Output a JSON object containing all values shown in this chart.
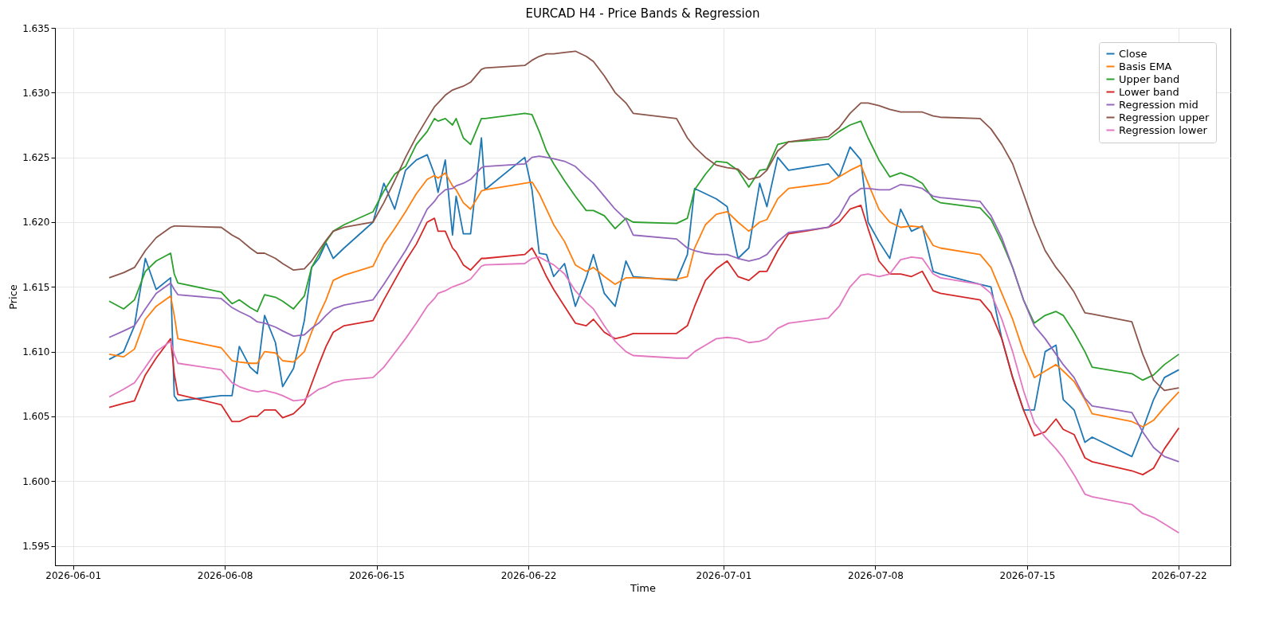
{
  "chart_data": {
    "type": "line",
    "title": "EURCAD H4 - Price Bands & Regression",
    "xlabel": "Time",
    "ylabel": "Price",
    "xlim": [
      "2026-05-31T04:00",
      "2026-07-24T09:00"
    ],
    "ylim": [
      1.5935,
      1.635
    ],
    "xticks": [
      "2026-06-01",
      "2026-06-08",
      "2026-06-15",
      "2026-06-22",
      "2026-07-01",
      "2026-07-08",
      "2026-07-15",
      "2026-07-22"
    ],
    "yticks": [
      {
        "value": 1.595,
        "label": "1.595"
      },
      {
        "value": 1.6,
        "label": "1.600"
      },
      {
        "value": 1.605,
        "label": "1.605"
      },
      {
        "value": 1.61,
        "label": "1.610"
      },
      {
        "value": 1.615,
        "label": "1.615"
      },
      {
        "value": 1.62,
        "label": "1.620"
      },
      {
        "value": 1.625,
        "label": "1.625"
      },
      {
        "value": 1.63,
        "label": "1.630"
      },
      {
        "value": 1.635,
        "label": "1.635"
      }
    ],
    "grid": true,
    "legend": "top right",
    "x": [
      "2026-06-02T16:00",
      "2026-06-03T08:00",
      "2026-06-03T20:00",
      "2026-06-04T08:00",
      "2026-06-04T20:00",
      "2026-06-05T12:00",
      "2026-06-05T16:00",
      "2026-06-05T20:00",
      "2026-06-07T20:00",
      "2026-06-08T08:00",
      "2026-06-08T16:00",
      "2026-06-09T04:00",
      "2026-06-09T12:00",
      "2026-06-09T20:00",
      "2026-06-10T08:00",
      "2026-06-10T16:00",
      "2026-06-11T04:00",
      "2026-06-11T16:00",
      "2026-06-12T00:00",
      "2026-06-12T08:00",
      "2026-06-12T16:00",
      "2026-06-13T00:00",
      "2026-06-13T12:00",
      "2026-06-14T20:00",
      "2026-06-15T08:00",
      "2026-06-15T20:00",
      "2026-06-16T08:00",
      "2026-06-16T20:00",
      "2026-06-17T08:00",
      "2026-06-17T16:00",
      "2026-06-17T20:00",
      "2026-06-18T04:00",
      "2026-06-18T12:00",
      "2026-06-18T16:00",
      "2026-06-19T00:00",
      "2026-06-19T08:00",
      "2026-06-19T20:00",
      "2026-06-20T00:00",
      "2026-06-21T20:00",
      "2026-06-22T04:00",
      "2026-06-22T12:00",
      "2026-06-22T20:00",
      "2026-06-23T04:00",
      "2026-06-23T16:00",
      "2026-06-24T04:00",
      "2026-06-24T16:00",
      "2026-06-25T00:00",
      "2026-06-25T12:00",
      "2026-06-26T00:00",
      "2026-06-26T12:00",
      "2026-06-26T20:00",
      "2026-06-28T20:00",
      "2026-06-29T08:00",
      "2026-06-29T16:00",
      "2026-06-30T04:00",
      "2026-06-30T16:00",
      "2026-07-01T04:00",
      "2026-07-01T16:00",
      "2026-07-02T04:00",
      "2026-07-02T16:00",
      "2026-07-03T00:00",
      "2026-07-03T12:00",
      "2026-07-04T00:00",
      "2026-07-05T20:00",
      "2026-07-06T08:00",
      "2026-07-06T20:00",
      "2026-07-07T08:00",
      "2026-07-07T16:00",
      "2026-07-08T04:00",
      "2026-07-08T16:00",
      "2026-07-09T04:00",
      "2026-07-09T16:00",
      "2026-07-10T04:00",
      "2026-07-10T16:00",
      "2026-07-11T00:00",
      "2026-07-12T20:00",
      "2026-07-13T08:00",
      "2026-07-13T20:00",
      "2026-07-14T08:00",
      "2026-07-14T20:00",
      "2026-07-15T08:00",
      "2026-07-15T20:00",
      "2026-07-16T08:00",
      "2026-07-16T16:00",
      "2026-07-17T04:00",
      "2026-07-17T16:00",
      "2026-07-18T00:00",
      "2026-07-19T20:00",
      "2026-07-20T08:00",
      "2026-07-20T20:00",
      "2026-07-21T08:00",
      "2026-07-22T00:00"
    ],
    "series": [
      {
        "name": "Close",
        "color": "#1f77b4",
        "values": [
          1.6094,
          1.61,
          1.612,
          1.6172,
          1.6148,
          1.6157,
          1.6066,
          1.6062,
          1.6066,
          1.6066,
          1.6104,
          1.6088,
          1.6083,
          1.6128,
          1.6107,
          1.6073,
          1.6087,
          1.6124,
          1.6165,
          1.6172,
          1.6184,
          1.6172,
          1.618,
          1.62,
          1.623,
          1.621,
          1.624,
          1.6248,
          1.6252,
          1.6237,
          1.6223,
          1.6248,
          1.619,
          1.622,
          1.6191,
          1.6191,
          1.6265,
          1.6225,
          1.625,
          1.6225,
          1.6176,
          1.6175,
          1.6158,
          1.6168,
          1.6135,
          1.6157,
          1.6175,
          1.6145,
          1.6135,
          1.617,
          1.6158,
          1.6155,
          1.6175,
          1.6226,
          1.6222,
          1.6218,
          1.6212,
          1.6172,
          1.618,
          1.623,
          1.6212,
          1.625,
          1.624,
          1.6245,
          1.6235,
          1.6258,
          1.6248,
          1.62,
          1.6185,
          1.6172,
          1.621,
          1.6193,
          1.6197,
          1.6162,
          1.616,
          1.6152,
          1.615,
          1.611,
          1.608,
          1.6055,
          1.6055,
          1.61,
          1.6105,
          1.6063,
          1.6055,
          1.603,
          1.6034,
          1.6019,
          1.604,
          1.6063,
          1.608,
          1.6086
        ]
      },
      {
        "name": "Basis EMA",
        "color": "#ff7f0e",
        "values": [
          1.6098,
          1.6096,
          1.6102,
          1.6125,
          1.6135,
          1.6143,
          1.6128,
          1.611,
          1.6103,
          1.6093,
          1.6092,
          1.6091,
          1.6091,
          1.61,
          1.6099,
          1.6093,
          1.6092,
          1.61,
          1.6115,
          1.6128,
          1.614,
          1.6155,
          1.6159,
          1.6166,
          1.6183,
          1.6195,
          1.6208,
          1.6222,
          1.6233,
          1.6236,
          1.6234,
          1.6238,
          1.6228,
          1.6225,
          1.6215,
          1.621,
          1.6224,
          1.6225,
          1.623,
          1.6231,
          1.6222,
          1.621,
          1.6198,
          1.6185,
          1.6167,
          1.6162,
          1.6165,
          1.6158,
          1.6152,
          1.6157,
          1.6157,
          1.6156,
          1.6158,
          1.618,
          1.6198,
          1.6206,
          1.6208,
          1.62,
          1.6193,
          1.62,
          1.6202,
          1.6218,
          1.6226,
          1.623,
          1.6235,
          1.624,
          1.6244,
          1.623,
          1.621,
          1.62,
          1.6196,
          1.6197,
          1.6196,
          1.6182,
          1.618,
          1.6175,
          1.6165,
          1.6145,
          1.6125,
          1.61,
          1.608,
          1.6085,
          1.609,
          1.6085,
          1.6077,
          1.6063,
          1.6052,
          1.6046,
          1.6042,
          1.6047,
          1.6057,
          1.6069
        ]
      },
      {
        "name": "Upper band",
        "color": "#2ca02c",
        "values": [
          1.6139,
          1.6133,
          1.614,
          1.6162,
          1.617,
          1.6176,
          1.616,
          1.6153,
          1.6146,
          1.6137,
          1.614,
          1.6134,
          1.6131,
          1.6144,
          1.6142,
          1.6139,
          1.6133,
          1.6143,
          1.6165,
          1.6175,
          1.6185,
          1.6193,
          1.6198,
          1.6208,
          1.6224,
          1.6237,
          1.6243,
          1.626,
          1.627,
          1.628,
          1.6278,
          1.628,
          1.6275,
          1.628,
          1.6265,
          1.626,
          1.628,
          1.628,
          1.6284,
          1.6283,
          1.627,
          1.6255,
          1.6245,
          1.6232,
          1.622,
          1.6209,
          1.6209,
          1.6205,
          1.6195,
          1.6203,
          1.62,
          1.6199,
          1.6203,
          1.6225,
          1.6237,
          1.6247,
          1.6246,
          1.624,
          1.6227,
          1.624,
          1.6241,
          1.626,
          1.6262,
          1.6264,
          1.627,
          1.6275,
          1.6278,
          1.6265,
          1.6248,
          1.6235,
          1.6238,
          1.6235,
          1.623,
          1.6218,
          1.6215,
          1.6211,
          1.6202,
          1.6185,
          1.6165,
          1.614,
          1.6122,
          1.6128,
          1.6131,
          1.6128,
          1.6115,
          1.61,
          1.6088,
          1.6083,
          1.6078,
          1.6082,
          1.609,
          1.6098
        ]
      },
      {
        "name": "Lower band",
        "color": "#d62728",
        "values": [
          1.6057,
          1.606,
          1.6062,
          1.6082,
          1.6095,
          1.611,
          1.6083,
          1.6067,
          1.6059,
          1.6046,
          1.6046,
          1.605,
          1.605,
          1.6055,
          1.6055,
          1.6049,
          1.6052,
          1.606,
          1.6075,
          1.609,
          1.6104,
          1.6115,
          1.612,
          1.6124,
          1.614,
          1.6155,
          1.617,
          1.6183,
          1.62,
          1.6203,
          1.6193,
          1.6193,
          1.618,
          1.6177,
          1.6167,
          1.6163,
          1.6172,
          1.6172,
          1.6175,
          1.618,
          1.617,
          1.6158,
          1.6148,
          1.6135,
          1.6122,
          1.612,
          1.6125,
          1.6115,
          1.611,
          1.6112,
          1.6114,
          1.6114,
          1.612,
          1.6135,
          1.6155,
          1.6164,
          1.617,
          1.6158,
          1.6155,
          1.6162,
          1.6162,
          1.6178,
          1.6191,
          1.6196,
          1.62,
          1.621,
          1.6213,
          1.6195,
          1.617,
          1.616,
          1.616,
          1.6158,
          1.6162,
          1.6147,
          1.6145,
          1.614,
          1.613,
          1.611,
          1.608,
          1.6055,
          1.6035,
          1.6038,
          1.6048,
          1.604,
          1.6036,
          1.6018,
          1.6015,
          1.6008,
          1.6005,
          1.601,
          1.6025,
          1.6041
        ]
      },
      {
        "name": "Regression mid",
        "color": "#9467bd",
        "values": [
          1.6111,
          1.6116,
          1.612,
          1.6133,
          1.6145,
          1.6153,
          1.6148,
          1.6144,
          1.6141,
          1.6134,
          1.6131,
          1.6127,
          1.6123,
          1.6122,
          1.6119,
          1.6116,
          1.6112,
          1.6113,
          1.6118,
          1.6122,
          1.6128,
          1.6133,
          1.6136,
          1.614,
          1.6152,
          1.6165,
          1.6178,
          1.6193,
          1.621,
          1.6216,
          1.622,
          1.6225,
          1.6226,
          1.6228,
          1.623,
          1.6233,
          1.6242,
          1.6243,
          1.6245,
          1.625,
          1.6251,
          1.625,
          1.6249,
          1.6247,
          1.6243,
          1.6235,
          1.623,
          1.622,
          1.621,
          1.6202,
          1.619,
          1.6187,
          1.618,
          1.6178,
          1.6176,
          1.6175,
          1.6175,
          1.6172,
          1.617,
          1.6172,
          1.6175,
          1.6185,
          1.6192,
          1.6196,
          1.6205,
          1.622,
          1.6226,
          1.6226,
          1.6225,
          1.6225,
          1.6229,
          1.6228,
          1.6226,
          1.622,
          1.6219,
          1.6216,
          1.6205,
          1.6188,
          1.6165,
          1.614,
          1.612,
          1.611,
          1.6098,
          1.609,
          1.608,
          1.6064,
          1.6058,
          1.6053,
          1.6038,
          1.6026,
          1.6019,
          1.6015
        ]
      },
      {
        "name": "Regression upper",
        "color": "#8c564b",
        "values": [
          1.6157,
          1.6161,
          1.6165,
          1.6178,
          1.6188,
          1.6196,
          1.6197,
          1.6197,
          1.6196,
          1.619,
          1.6187,
          1.618,
          1.6176,
          1.6176,
          1.6172,
          1.6168,
          1.6163,
          1.6164,
          1.617,
          1.6178,
          1.6186,
          1.6193,
          1.6196,
          1.62,
          1.6215,
          1.6232,
          1.625,
          1.6266,
          1.628,
          1.6289,
          1.6292,
          1.6298,
          1.6302,
          1.6303,
          1.6305,
          1.6308,
          1.6318,
          1.6319,
          1.6321,
          1.6325,
          1.6328,
          1.633,
          1.633,
          1.6331,
          1.6332,
          1.6328,
          1.6324,
          1.6313,
          1.63,
          1.6292,
          1.6284,
          1.628,
          1.6265,
          1.6258,
          1.625,
          1.6244,
          1.6242,
          1.6241,
          1.6233,
          1.6235,
          1.624,
          1.6255,
          1.6262,
          1.6266,
          1.6273,
          1.6284,
          1.6292,
          1.6292,
          1.629,
          1.6287,
          1.6285,
          1.6285,
          1.6285,
          1.6282,
          1.6281,
          1.628,
          1.6272,
          1.626,
          1.6245,
          1.6222,
          1.6198,
          1.6178,
          1.6165,
          1.6158,
          1.6146,
          1.613,
          1.6129,
          1.6123,
          1.6098,
          1.6078,
          1.607,
          1.6072
        ]
      },
      {
        "name": "Regression lower",
        "color": "#e377c2",
        "values": [
          1.6065,
          1.6071,
          1.6076,
          1.6088,
          1.61,
          1.6108,
          1.6098,
          1.6091,
          1.6086,
          1.6076,
          1.6073,
          1.607,
          1.6069,
          1.607,
          1.6068,
          1.6066,
          1.6062,
          1.6063,
          1.6067,
          1.6071,
          1.6073,
          1.6076,
          1.6078,
          1.608,
          1.6088,
          1.6099,
          1.611,
          1.6122,
          1.6135,
          1.6141,
          1.6145,
          1.6147,
          1.615,
          1.6151,
          1.6153,
          1.6156,
          1.6166,
          1.6167,
          1.6168,
          1.6172,
          1.6173,
          1.617,
          1.6167,
          1.616,
          1.6147,
          1.6138,
          1.6133,
          1.612,
          1.6108,
          1.61,
          1.6097,
          1.6095,
          1.6095,
          1.61,
          1.6105,
          1.611,
          1.6111,
          1.611,
          1.6107,
          1.6108,
          1.611,
          1.6118,
          1.6122,
          1.6126,
          1.6135,
          1.615,
          1.6159,
          1.616,
          1.6158,
          1.616,
          1.6171,
          1.6173,
          1.6172,
          1.616,
          1.6157,
          1.6152,
          1.6145,
          1.6125,
          1.61,
          1.607,
          1.6045,
          1.6034,
          1.6025,
          1.6018,
          1.6005,
          1.599,
          1.5988,
          1.5982,
          1.5975,
          1.5972,
          1.5967,
          1.596
        ]
      }
    ]
  }
}
